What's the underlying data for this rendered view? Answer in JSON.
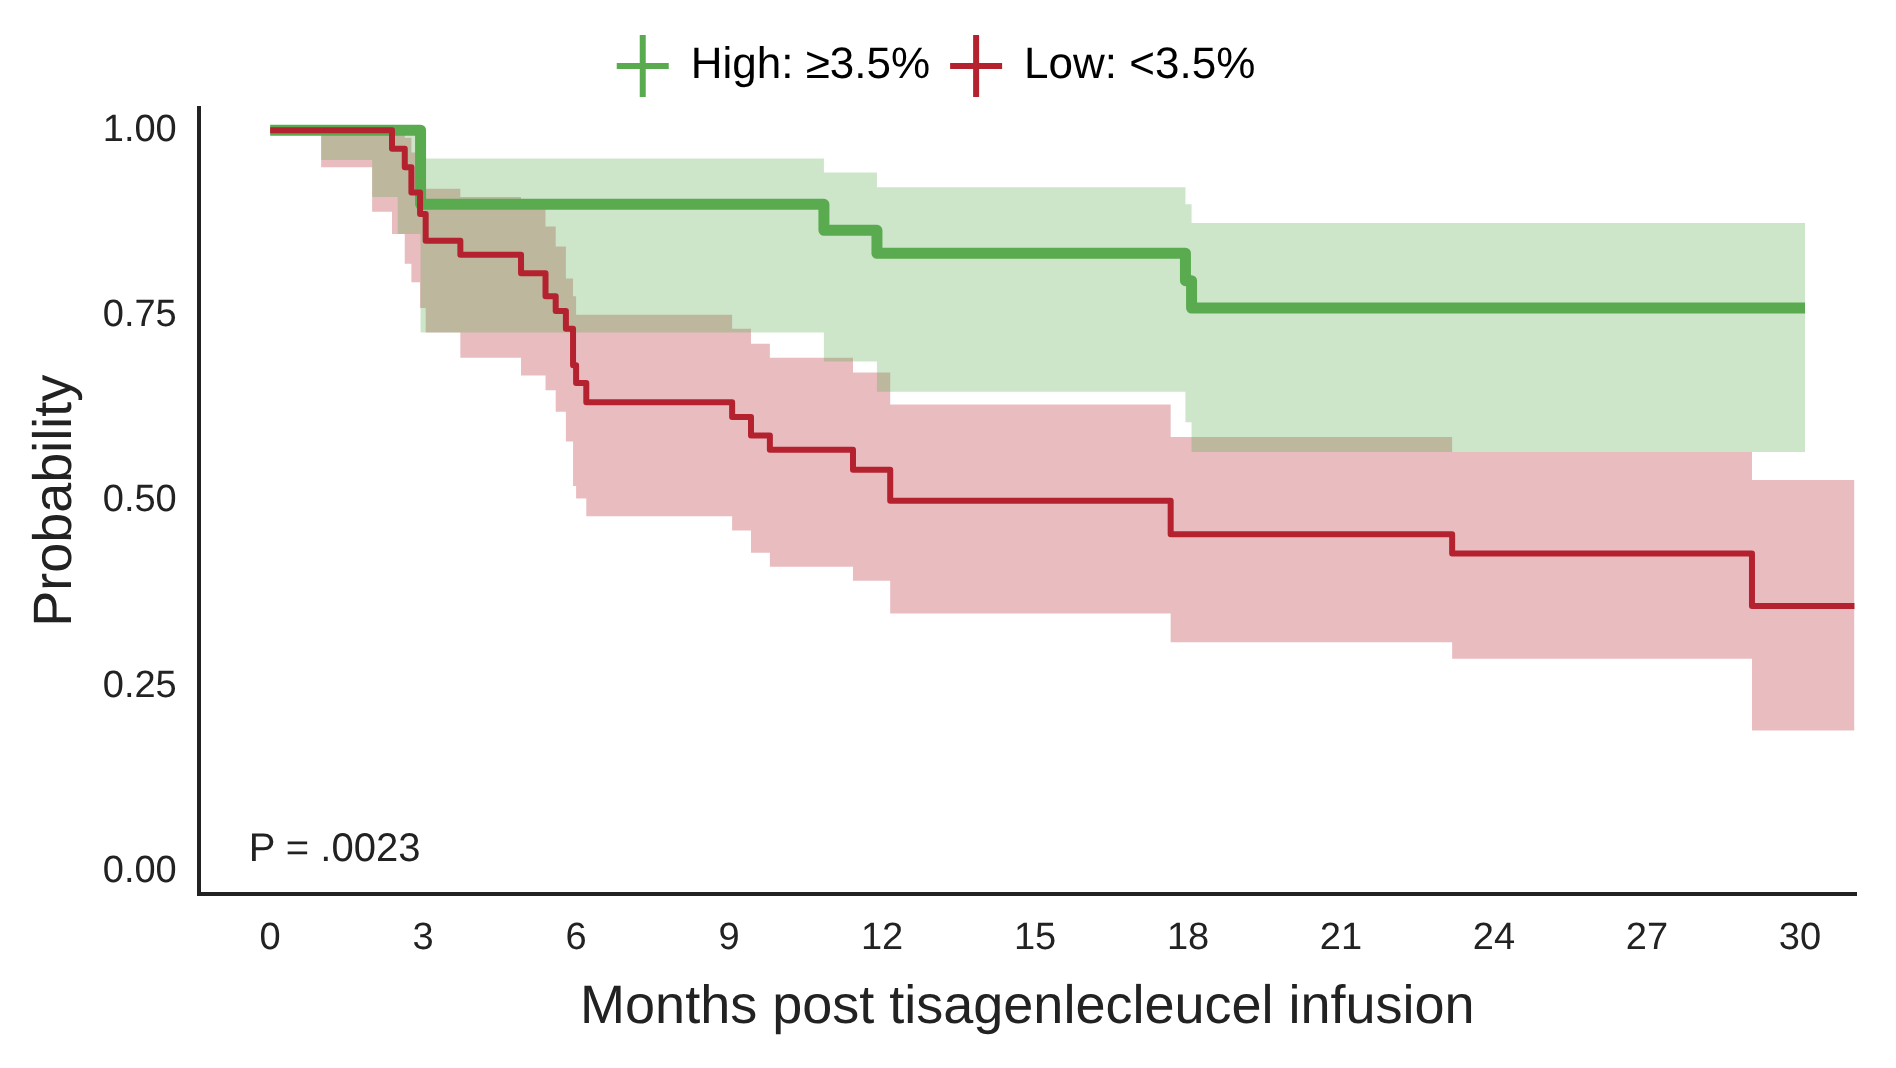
{
  "chart_data": {
    "type": "step",
    "xlabel": "Months post tisagenlecleucel infusion",
    "ylabel": "Probability",
    "xlim": [
      -1.4,
      31.1
    ],
    "ylim": [
      -0.03,
      1.03
    ],
    "xticks": [
      0,
      3,
      6,
      9,
      12,
      15,
      18,
      21,
      24,
      27,
      30
    ],
    "yticks": [
      {
        "value": 0,
        "label": "0.00"
      },
      0.25,
      {
        "value": 0.5,
        "label": "0.50"
      },
      0.75,
      {
        "value": 1,
        "label": "1.00"
      }
    ],
    "grid": false,
    "legend": "top",
    "marker": "none",
    "line_style": "solid",
    "annotations": [
      "P = .0023"
    ],
    "series": [
      {
        "name": "High: ≥3.5%",
        "color": "#5aab4f",
        "x": [
          0,
          1,
          2,
          2.5,
          2.95,
          10.86,
          11.9,
          17.95,
          18.07,
          30.1
        ],
        "values": [
          1,
          1,
          1,
          1,
          0.9,
          0.865,
          0.834,
          0.797,
          0.76,
          0.76
        ],
        "lower": [
          1,
          0.96,
          0.91,
          0.86,
          0.727,
          0.688,
          0.647,
          0.606,
          0.566,
          0.566
        ],
        "upper": [
          1,
          1,
          1,
          1,
          0.962,
          0.943,
          0.923,
          0.9,
          0.875,
          0.875
        ]
      },
      {
        "name": "Low: <3.5%",
        "color": "#b5222f",
        "x": [
          0,
          1,
          2,
          2.39,
          2.64,
          2.77,
          2.94,
          3.05,
          3.73,
          4.92,
          5.4,
          5.6,
          5.8,
          5.94,
          6.0,
          6.2,
          9.06,
          9.43,
          9.8,
          11.43,
          12.16,
          17.66,
          23.18,
          29.06,
          31.07
        ],
        "values": [
          1,
          1,
          1,
          0.975,
          0.95,
          0.916,
          0.887,
          0.851,
          0.832,
          0.807,
          0.776,
          0.756,
          0.732,
          0.683,
          0.659,
          0.633,
          0.613,
          0.588,
          0.569,
          0.542,
          0.5,
          0.455,
          0.429,
          0.358,
          0.358
        ],
        "lower": [
          1,
          0.95,
          0.89,
          0.86,
          0.82,
          0.795,
          0.76,
          0.727,
          0.693,
          0.669,
          0.649,
          0.62,
          0.58,
          0.52,
          0.503,
          0.479,
          0.46,
          0.43,
          0.411,
          0.392,
          0.348,
          0.309,
          0.287,
          0.19,
          0.19
        ],
        "upper": [
          1,
          1,
          1,
          1,
          0.99,
          0.97,
          0.95,
          0.921,
          0.91,
          0.897,
          0.87,
          0.843,
          0.8,
          0.776,
          0.751,
          0.751,
          0.732,
          0.712,
          0.693,
          0.673,
          0.63,
          0.586,
          0.566,
          0.528,
          0.528
        ]
      }
    ]
  }
}
